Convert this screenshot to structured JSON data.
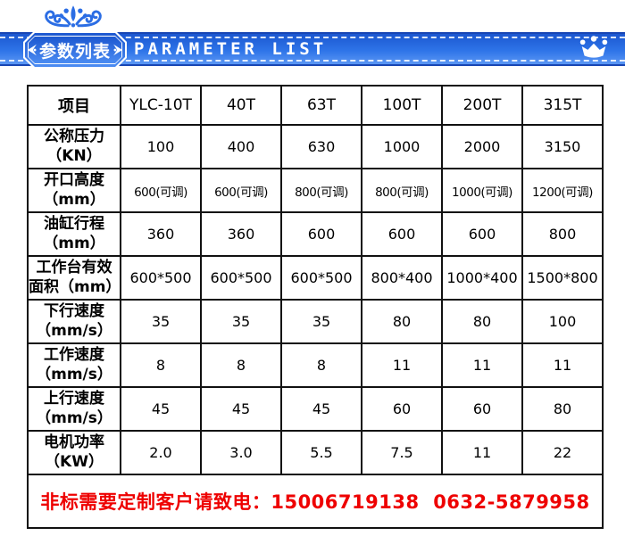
{
  "header": {
    "badge_label": "参数列表",
    "title": "PARAMETER LIST",
    "icons": {
      "top_ornament": "crown-flourish-ornament",
      "badge_left": "wing-ornament-left",
      "badge_right": "wing-ornament-right",
      "right_icon": "crown-icon"
    },
    "colors": {
      "band_top": "#1c57d0",
      "band_bottom": "#5b97f4",
      "band_border": "#1846b4",
      "ornament_blue": "#2b6de4",
      "text_white": "#ffffff"
    }
  },
  "table": {
    "columns": [
      "项目",
      "YLC-10T",
      "40T",
      "63T",
      "100T",
      "200T",
      "315T"
    ],
    "rows": [
      {
        "label": "公称压力",
        "unit": "（KN）",
        "values": [
          "100",
          "400",
          "630",
          "1000",
          "2000",
          "3150"
        ]
      },
      {
        "label": "开口高度",
        "unit": "（mm）",
        "values": [
          "600(可调)",
          "600(可调)",
          "800(可调)",
          "800(可调)",
          "1000(可调)",
          "1200(可调)"
        ]
      },
      {
        "label": "油缸行程",
        "unit": "（mm）",
        "values": [
          "360",
          "360",
          "600",
          "600",
          "600",
          "800"
        ]
      },
      {
        "label": "工作台有效",
        "unit": "面积（mm）",
        "values": [
          "600*500",
          "600*500",
          "600*500",
          "800*400",
          "1000*400",
          "1500*800"
        ]
      },
      {
        "label": "下行速度",
        "unit": "（mm/s）",
        "values": [
          "35",
          "35",
          "35",
          "80",
          "80",
          "100"
        ]
      },
      {
        "label": "工作速度",
        "unit": "（mm/s）",
        "values": [
          "8",
          "8",
          "8",
          "11",
          "11",
          "11"
        ]
      },
      {
        "label": "上行速度",
        "unit": "（mm/s）",
        "values": [
          "45",
          "45",
          "45",
          "60",
          "60",
          "80"
        ]
      },
      {
        "label": "电机功率",
        "unit": "（KW）",
        "values": [
          "2.0",
          "3.0",
          "5.5",
          "7.5",
          "11",
          "22"
        ]
      }
    ],
    "footer": "非标需要定制客户请致电：15006719138  0632-5879958",
    "colors": {
      "border": "#111111",
      "footer_red": "#ee0000"
    }
  }
}
